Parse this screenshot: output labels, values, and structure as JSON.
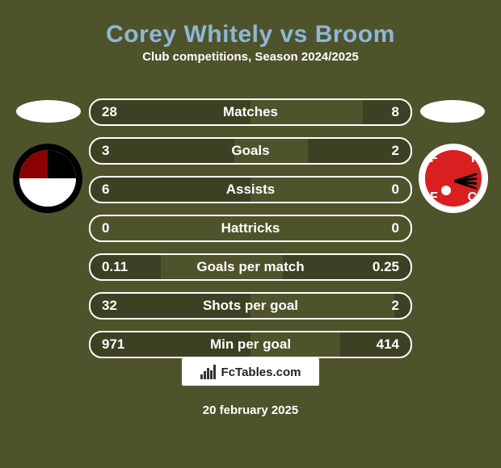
{
  "page": {
    "title_color": "#8fb6d6",
    "background_color": "#4f532c",
    "text_color": "#ffffff",
    "card_border_color": "#ffffff"
  },
  "header": {
    "title": "Corey Whitely vs Broom",
    "subtitle": "Club competitions, Season 2024/2025"
  },
  "players": {
    "left": {
      "name": "Corey Whitely",
      "photo_placeholder": true,
      "club_badge_desc": "Bromley FC (black ring, red/black/white quarters)"
    },
    "right": {
      "name": "Broom",
      "photo_placeholder": true,
      "club_badge_desc": "Fleetwood Town FC (red circle, white ring, FTFC letters)"
    }
  },
  "stats": {
    "fill_color_left": "#3d4022",
    "fill_color_right": "#3d4022",
    "rows": [
      {
        "label": "Matches",
        "left": "28",
        "right": "8",
        "left_pct": 0.5,
        "right_pct": 0.15
      },
      {
        "label": "Goals",
        "left": "3",
        "right": "2",
        "left_pct": 0.45,
        "right_pct": 0.32
      },
      {
        "label": "Assists",
        "left": "6",
        "right": "0",
        "left_pct": 0.5,
        "right_pct": 0.0
      },
      {
        "label": "Hattricks",
        "left": "0",
        "right": "0",
        "left_pct": 0.0,
        "right_pct": 0.0
      },
      {
        "label": "Goals per match",
        "left": "0.11",
        "right": "0.25",
        "left_pct": 0.22,
        "right_pct": 0.4
      },
      {
        "label": "Shots per goal",
        "left": "32",
        "right": "2",
        "left_pct": 0.5,
        "right_pct": 0.05
      },
      {
        "label": "Min per goal",
        "left": "971",
        "right": "414",
        "left_pct": 0.5,
        "right_pct": 0.22
      }
    ]
  },
  "footer": {
    "site_name": "FcTables.com",
    "date": "20 february 2025"
  }
}
